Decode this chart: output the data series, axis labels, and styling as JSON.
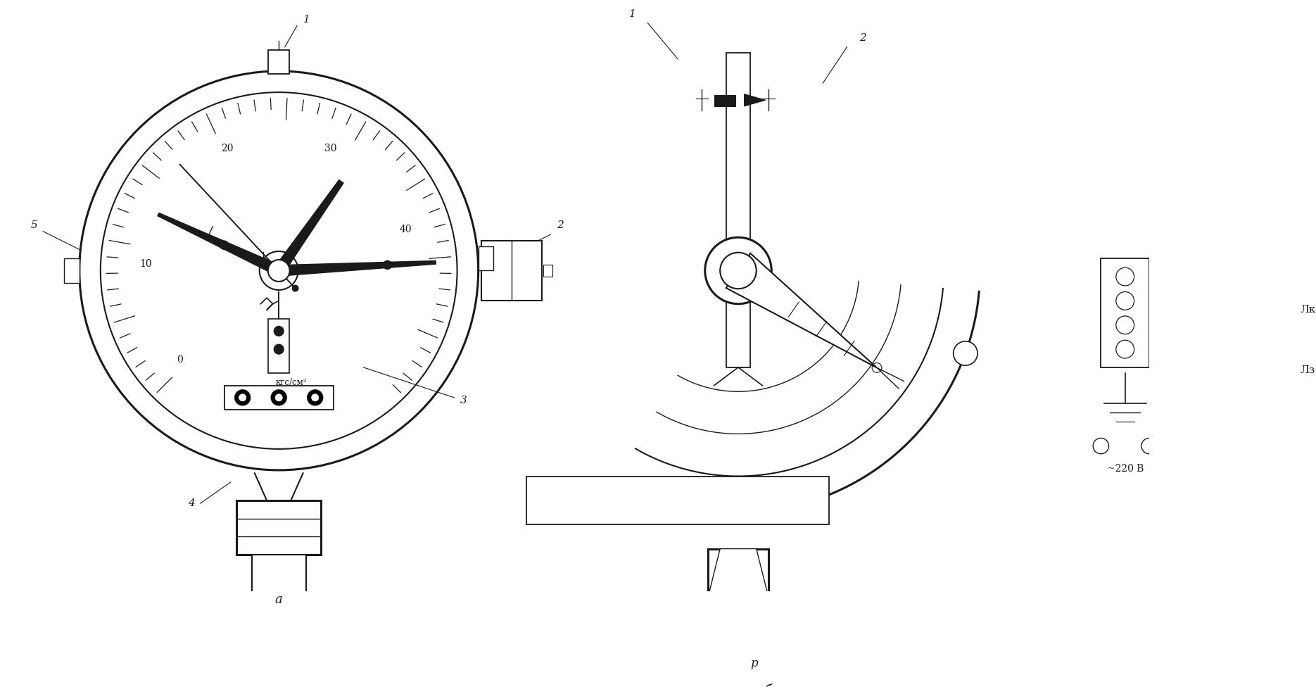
{
  "bg_color": "#ffffff",
  "line_color": "#1a1a1a",
  "fig_width": 18.7,
  "fig_height": 9.76,
  "label_kgs": "кгс/см²",
  "label_220": "~220 В",
  "label_lk": "Лк",
  "label_lz": "Лз",
  "label_p": "p"
}
